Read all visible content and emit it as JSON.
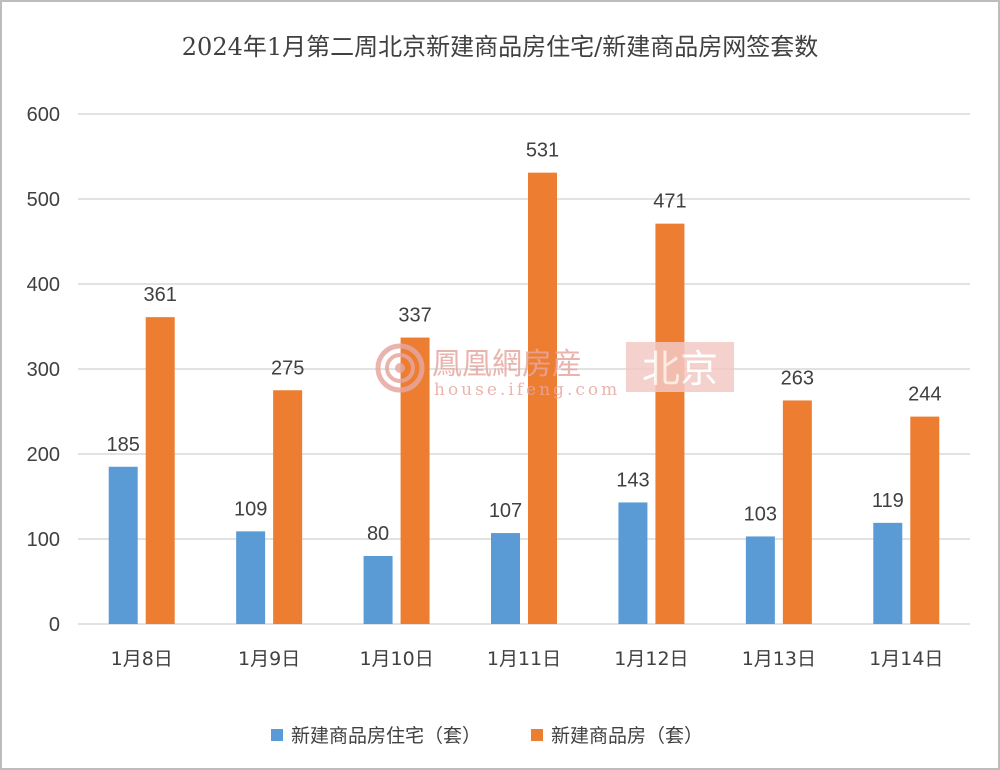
{
  "chart_data": {
    "type": "bar",
    "title": "2024年1月第二周北京新建商品房住宅/新建商品房网签套数",
    "categories": [
      "1月8日",
      "1月9日",
      "1月10日",
      "1月11日",
      "1月12日",
      "1月13日",
      "1月14日"
    ],
    "series": [
      {
        "name": "新建商品房住宅（套）",
        "color": "#5b9bd5",
        "values": [
          185,
          109,
          80,
          107,
          143,
          103,
          119
        ]
      },
      {
        "name": "新建商品房（套）",
        "color": "#ed7d31",
        "values": [
          361,
          275,
          337,
          531,
          471,
          263,
          244
        ]
      }
    ],
    "ylim": [
      0,
      600
    ],
    "yticks": [
      0,
      100,
      200,
      300,
      400,
      500,
      600
    ],
    "grid": true,
    "legend_position": "bottom"
  },
  "watermark": {
    "brand": "鳳凰網房産",
    "url": "house.ifeng.com",
    "city": "北京"
  }
}
